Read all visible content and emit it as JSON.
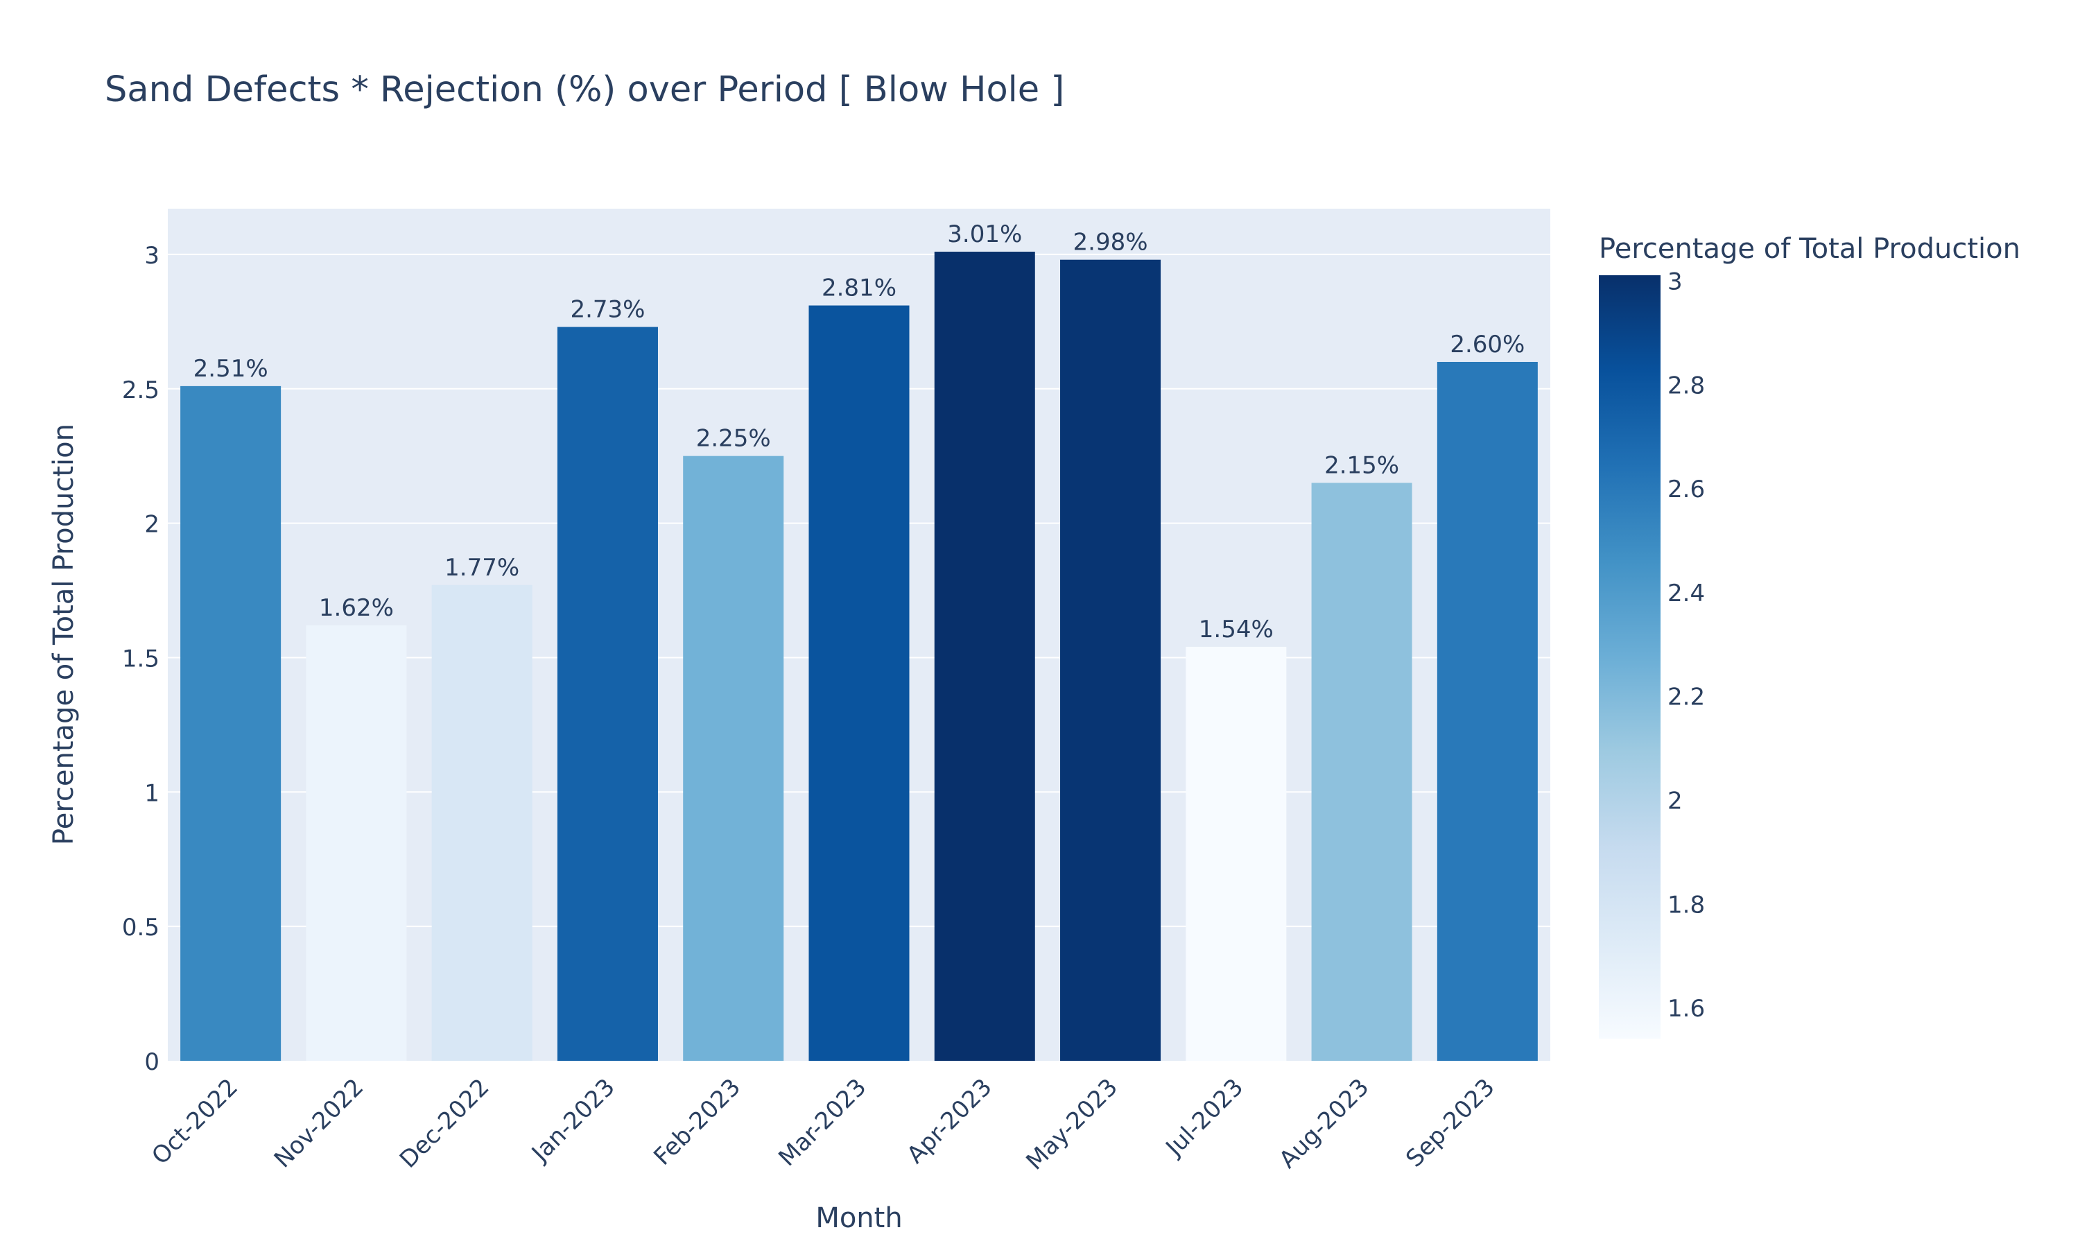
{
  "chart_data": {
    "type": "bar",
    "title": "Sand Defects * Rejection (%) over Period [ Blow Hole ]",
    "xlabel": "Month",
    "ylabel": "Percentage of Total Production",
    "categories": [
      "Oct-2022",
      "Nov-2022",
      "Dec-2022",
      "Jan-2023",
      "Feb-2023",
      "Mar-2023",
      "Apr-2023",
      "May-2023",
      "Jul-2023",
      "Aug-2023",
      "Sep-2023"
    ],
    "values": [
      2.51,
      1.62,
      1.77,
      2.73,
      2.25,
      2.81,
      3.01,
      2.98,
      1.54,
      2.15,
      2.6
    ],
    "data_labels": [
      "2.51%",
      "1.62%",
      "1.77%",
      "2.73%",
      "2.25%",
      "2.81%",
      "3.01%",
      "2.98%",
      "1.54%",
      "2.15%",
      "2.60%"
    ],
    "ylim": [
      0,
      3.17
    ],
    "yticks": [
      0,
      0.5,
      1,
      1.5,
      2,
      2.5,
      3
    ],
    "ytick_labels": [
      "0",
      "0.5",
      "1",
      "1.5",
      "2",
      "2.5",
      "3"
    ],
    "grid": true,
    "plot_background": "#e5ecf6",
    "colorbar": {
      "title": "Percentage of Total Production",
      "range": [
        1.54,
        3.01
      ],
      "ticks": [
        1.6,
        1.8,
        2,
        2.2,
        2.4,
        2.6,
        2.8,
        3
      ],
      "tick_labels": [
        "1.6",
        "1.8",
        "2",
        "2.2",
        "2.4",
        "2.6",
        "2.8",
        "3"
      ],
      "colorscale": [
        "#f7fbff",
        "#deebf7",
        "#c6dbef",
        "#9ecae1",
        "#6baed6",
        "#4292c6",
        "#2171b5",
        "#08519c",
        "#08306b"
      ]
    }
  }
}
